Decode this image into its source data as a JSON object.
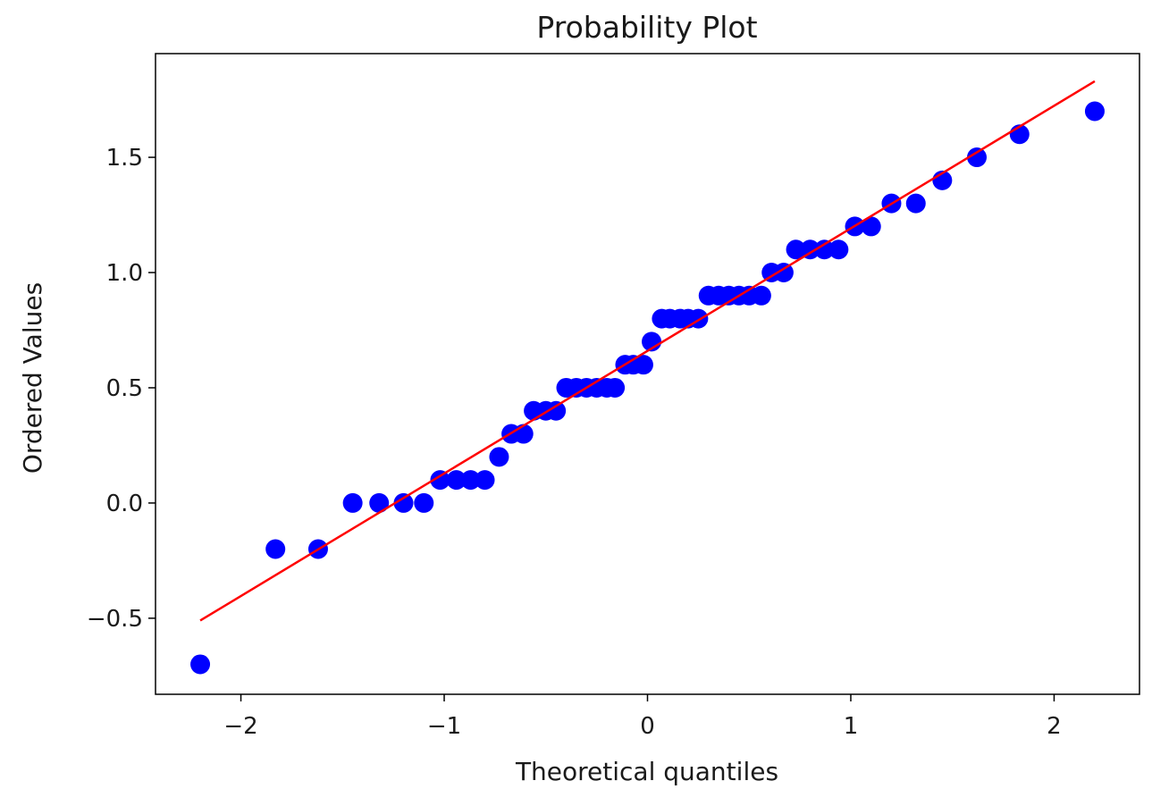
{
  "chart_data": {
    "type": "scatter",
    "title": "Probability Plot",
    "xlabel": "Theoretical quantiles",
    "ylabel": "Ordered Values",
    "xlim": [
      -2.42,
      2.42
    ],
    "ylim": [
      -0.83,
      1.95
    ],
    "x_ticks": [
      {
        "value": -2,
        "label": "−2"
      },
      {
        "value": -1,
        "label": "−1"
      },
      {
        "value": 0,
        "label": "0"
      },
      {
        "value": 1,
        "label": "1"
      },
      {
        "value": 2,
        "label": "2"
      }
    ],
    "y_ticks": [
      {
        "value": -0.5,
        "label": "−0.5"
      },
      {
        "value": 0.0,
        "label": "0.0"
      },
      {
        "value": 0.5,
        "label": "0.5"
      },
      {
        "value": 1.0,
        "label": "1.0"
      },
      {
        "value": 1.5,
        "label": "1.5"
      }
    ],
    "grid": false,
    "colors": {
      "points": "#0000ff",
      "fit_line": "#ff0000",
      "axes": "#000000"
    },
    "series": [
      {
        "marker": "circle",
        "points": [
          {
            "x": -2.2,
            "y": -0.7
          },
          {
            "x": -1.83,
            "y": -0.2
          },
          {
            "x": -1.62,
            "y": -0.2
          },
          {
            "x": -1.45,
            "y": 0.0
          },
          {
            "x": -1.32,
            "y": 0.0
          },
          {
            "x": -1.2,
            "y": 0.0
          },
          {
            "x": -1.1,
            "y": 0.0
          },
          {
            "x": -1.02,
            "y": 0.1
          },
          {
            "x": -0.94,
            "y": 0.1
          },
          {
            "x": -0.87,
            "y": 0.1
          },
          {
            "x": -0.8,
            "y": 0.1
          },
          {
            "x": -0.73,
            "y": 0.2
          },
          {
            "x": -0.67,
            "y": 0.3
          },
          {
            "x": -0.61,
            "y": 0.3
          },
          {
            "x": -0.56,
            "y": 0.4
          },
          {
            "x": -0.5,
            "y": 0.4
          },
          {
            "x": -0.45,
            "y": 0.4
          },
          {
            "x": -0.4,
            "y": 0.5
          },
          {
            "x": -0.35,
            "y": 0.5
          },
          {
            "x": -0.3,
            "y": 0.5
          },
          {
            "x": -0.25,
            "y": 0.5
          },
          {
            "x": -0.2,
            "y": 0.5
          },
          {
            "x": -0.16,
            "y": 0.5
          },
          {
            "x": -0.11,
            "y": 0.6
          },
          {
            "x": -0.07,
            "y": 0.6
          },
          {
            "x": -0.02,
            "y": 0.6
          },
          {
            "x": 0.02,
            "y": 0.7
          },
          {
            "x": 0.07,
            "y": 0.8
          },
          {
            "x": 0.11,
            "y": 0.8
          },
          {
            "x": 0.16,
            "y": 0.8
          },
          {
            "x": 0.2,
            "y": 0.8
          },
          {
            "x": 0.25,
            "y": 0.8
          },
          {
            "x": 0.3,
            "y": 0.9
          },
          {
            "x": 0.35,
            "y": 0.9
          },
          {
            "x": 0.4,
            "y": 0.9
          },
          {
            "x": 0.45,
            "y": 0.9
          },
          {
            "x": 0.5,
            "y": 0.9
          },
          {
            "x": 0.56,
            "y": 0.9
          },
          {
            "x": 0.61,
            "y": 1.0
          },
          {
            "x": 0.67,
            "y": 1.0
          },
          {
            "x": 0.73,
            "y": 1.1
          },
          {
            "x": 0.8,
            "y": 1.1
          },
          {
            "x": 0.87,
            "y": 1.1
          },
          {
            "x": 0.94,
            "y": 1.1
          },
          {
            "x": 1.02,
            "y": 1.2
          },
          {
            "x": 1.1,
            "y": 1.2
          },
          {
            "x": 1.2,
            "y": 1.3
          },
          {
            "x": 1.32,
            "y": 1.3
          },
          {
            "x": 1.45,
            "y": 1.4
          },
          {
            "x": 1.62,
            "y": 1.5
          },
          {
            "x": 1.83,
            "y": 1.6
          },
          {
            "x": 2.2,
            "y": 1.7
          }
        ]
      }
    ],
    "fit_line": {
      "x": [
        -2.2,
        2.2
      ],
      "y": [
        -0.51,
        1.83
      ]
    }
  }
}
